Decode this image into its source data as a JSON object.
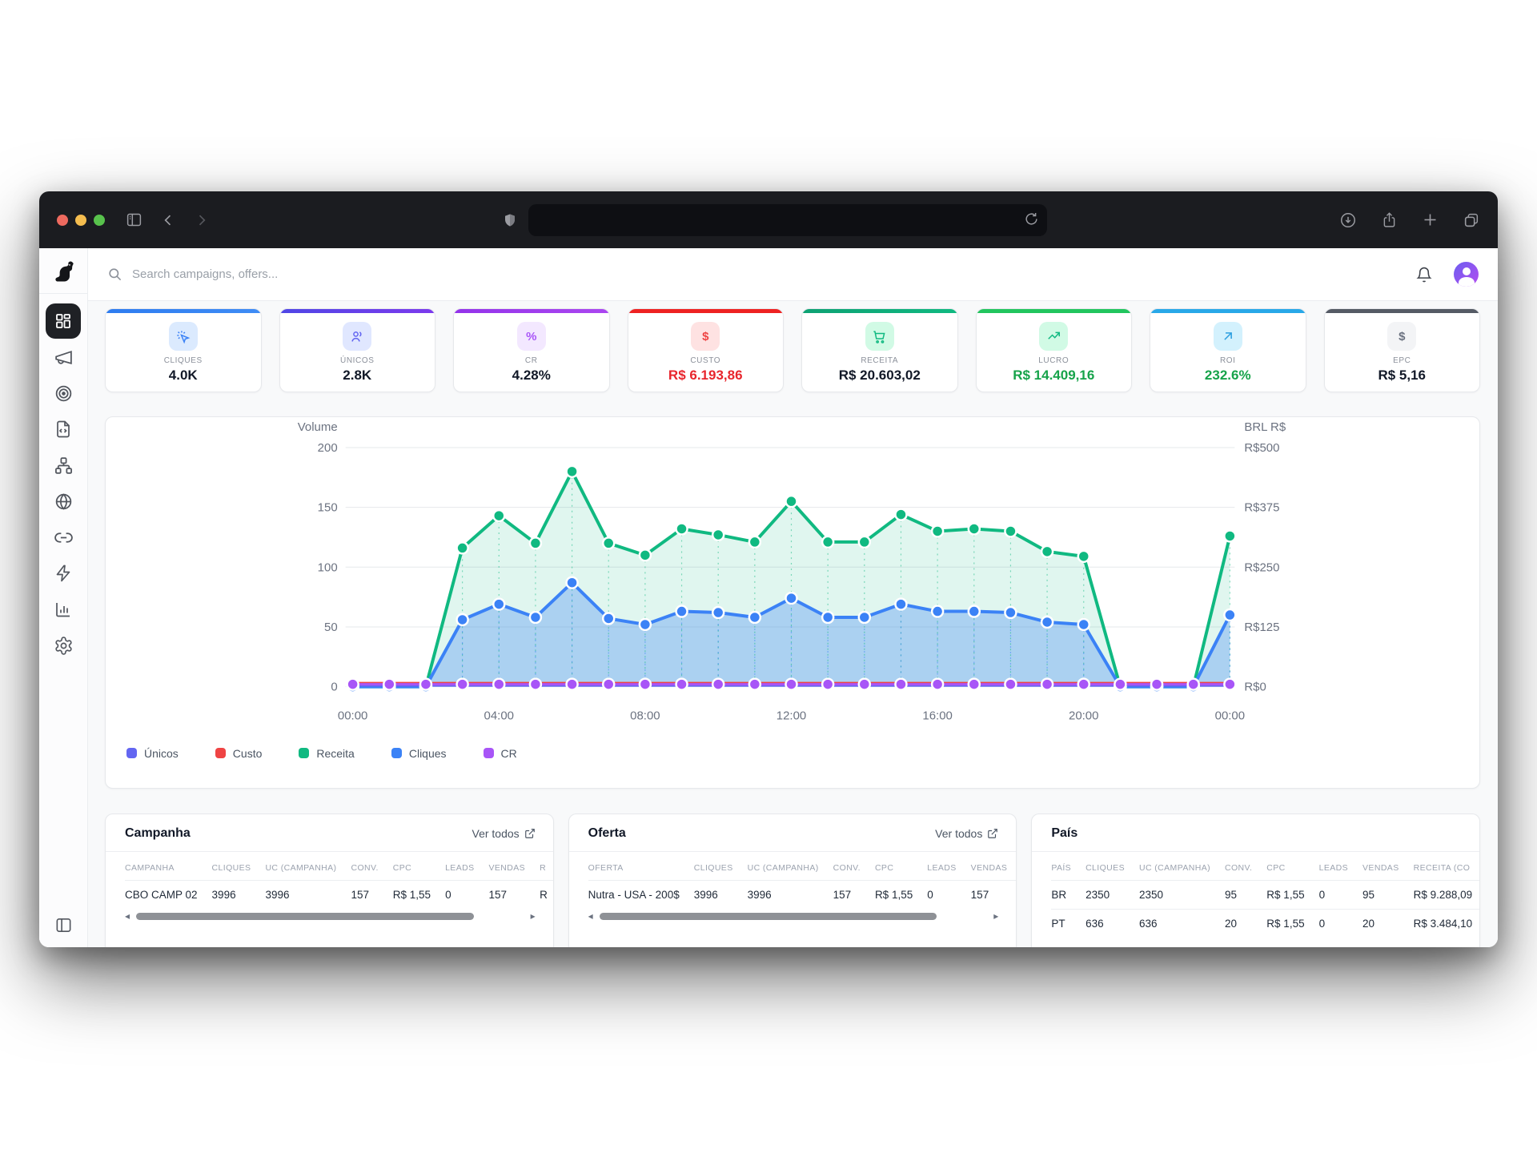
{
  "browser": {
    "url_value": ""
  },
  "app": {
    "search_placeholder": "Search campaigns, offers..."
  },
  "kpis": [
    {
      "label": "CLIQUES",
      "value": "4.0K",
      "accent": "linear-gradient(90deg,#2e7cf0,#3f8cf5)",
      "icon": "cursor-click",
      "icon_bg": "#dbeafe",
      "icon_color": "#3b82f6",
      "value_color": "#111827"
    },
    {
      "label": "ÚNICOS",
      "value": "2.8K",
      "accent": "linear-gradient(90deg,#4f46e5,#7c3aed)",
      "icon": "users",
      "icon_bg": "#e0e7ff",
      "icon_color": "#6366f1",
      "value_color": "#111827"
    },
    {
      "label": "CR",
      "value": "4.28%",
      "accent": "linear-gradient(90deg,#9333ea,#ab47f0)",
      "icon": "percent",
      "icon_bg": "#f3e8ff",
      "icon_color": "#a855f7",
      "value_color": "#111827"
    },
    {
      "label": "CUSTO",
      "value": "R$ 6.193,86",
      "accent": "#ee2222",
      "icon": "dollar",
      "icon_bg": "#fee2e2",
      "icon_color": "#ef4444",
      "value_color": "#e8262d"
    },
    {
      "label": "RECEITA",
      "value": "R$ 20.603,02",
      "accent": "linear-gradient(90deg,#0ea173,#10b981)",
      "icon": "cart",
      "icon_bg": "#d1fae5",
      "icon_color": "#10b981",
      "value_color": "#111827"
    },
    {
      "label": "LUCRO",
      "value": "R$ 14.409,16",
      "accent": "#22c55e",
      "icon": "trending-up",
      "icon_bg": "#d1fae5",
      "icon_color": "#10b981",
      "value_color": "#16a34a"
    },
    {
      "label": "ROI",
      "value": "232.6%",
      "accent": "#29a8e8",
      "icon": "arrow-up-right",
      "icon_bg": "#d3f1fd",
      "icon_color": "#2e9fe0",
      "value_color": "#16a34a"
    },
    {
      "label": "EPC",
      "value": "R$ 5,16",
      "accent": "#555b65",
      "icon": "dollar",
      "icon_bg": "#f3f4f6",
      "icon_color": "#6b7280",
      "value_color": "#111827"
    }
  ],
  "chart_data": {
    "type": "area",
    "x_tick_labels": [
      "00:00",
      "04:00",
      "08:00",
      "12:00",
      "16:00",
      "20:00",
      "00:00"
    ],
    "x_interval": "hourly, 00:00 to 00:00 (25 points)",
    "left_axis": {
      "title": "Volume",
      "ticks": [
        0,
        50,
        100,
        150,
        200
      ],
      "max": 200
    },
    "right_axis": {
      "title": "BRL R$",
      "ticks": [
        "R$0",
        "R$125",
        "R$250",
        "R$375",
        "R$500"
      ]
    },
    "grid": true,
    "legend_position": "bottom-left",
    "series": [
      {
        "name": "Únicos",
        "color": "#6366f1",
        "dots": false,
        "draw": 3,
        "values": [
          1,
          1,
          1,
          1,
          1,
          1,
          1,
          1,
          1,
          1,
          1,
          1,
          1,
          1,
          1,
          1,
          1,
          1,
          1,
          1,
          1,
          1,
          1,
          1,
          1
        ]
      },
      {
        "name": "Custo",
        "color": "#ef4444",
        "dots": false,
        "draw": 2,
        "values": [
          3,
          3,
          3,
          3,
          3,
          3,
          3,
          3,
          3,
          3,
          3,
          3,
          3,
          3,
          3,
          3,
          3,
          3,
          3,
          3,
          3,
          3,
          3,
          3,
          3
        ]
      },
      {
        "name": "Receita",
        "color": "#10b981",
        "fill": "rgba(16,185,129,0.13)",
        "dots": true,
        "draw": 0,
        "values": [
          0,
          0,
          0,
          116,
          143,
          120,
          180,
          120,
          110,
          132,
          127,
          121,
          155,
          121,
          121,
          144,
          130,
          132,
          130,
          113,
          109,
          0,
          0,
          0,
          126
        ]
      },
      {
        "name": "Cliques",
        "color": "#3b82f6",
        "fill": "rgba(59,130,246,0.32)",
        "dots": true,
        "draw": 1,
        "values": [
          0,
          0,
          0,
          56,
          69,
          58,
          87,
          57,
          52,
          63,
          62,
          58,
          74,
          58,
          58,
          69,
          63,
          63,
          62,
          54,
          52,
          0,
          0,
          0,
          60
        ]
      },
      {
        "name": "CR",
        "color": "#a855f7",
        "dots": true,
        "draw": 4,
        "values": [
          2,
          2,
          2,
          2,
          2,
          2,
          2,
          2,
          2,
          2,
          2,
          2,
          2,
          2,
          2,
          2,
          2,
          2,
          2,
          2,
          2,
          2,
          2,
          2,
          2
        ]
      }
    ]
  },
  "tables": {
    "campanha": {
      "title": "Campanha",
      "link_label": "Ver todos",
      "columns": [
        "CAMPANHA",
        "CLIQUES",
        "UC (CAMPANHA)",
        "CONV.",
        "CPC",
        "LEADS",
        "VENDAS",
        "R"
      ],
      "rows": [
        [
          "CBO CAMP 02",
          "3996",
          "3996",
          "157",
          "R$ 1,55",
          "0",
          "157",
          "R"
        ]
      ]
    },
    "oferta": {
      "title": "Oferta",
      "link_label": "Ver todos",
      "columns": [
        "OFERTA",
        "CLIQUES",
        "UC (CAMPANHA)",
        "CONV.",
        "CPC",
        "LEADS",
        "VENDAS"
      ],
      "rows": [
        [
          "Nutra - USA - 200$",
          "3996",
          "3996",
          "157",
          "R$ 1,55",
          "0",
          "157"
        ]
      ]
    },
    "pais": {
      "title": "País",
      "columns": [
        "PAÍS",
        "CLIQUES",
        "UC (CAMPANHA)",
        "CONV.",
        "CPC",
        "LEADS",
        "VENDAS",
        "RECEITA (CO"
      ],
      "rows": [
        [
          "BR",
          "2350",
          "2350",
          "95",
          "R$ 1,55",
          "0",
          "95",
          "R$ 9.288,09"
        ],
        [
          "PT",
          "636",
          "636",
          "20",
          "R$ 1,55",
          "0",
          "20",
          "R$ 3.484,10"
        ]
      ]
    }
  }
}
